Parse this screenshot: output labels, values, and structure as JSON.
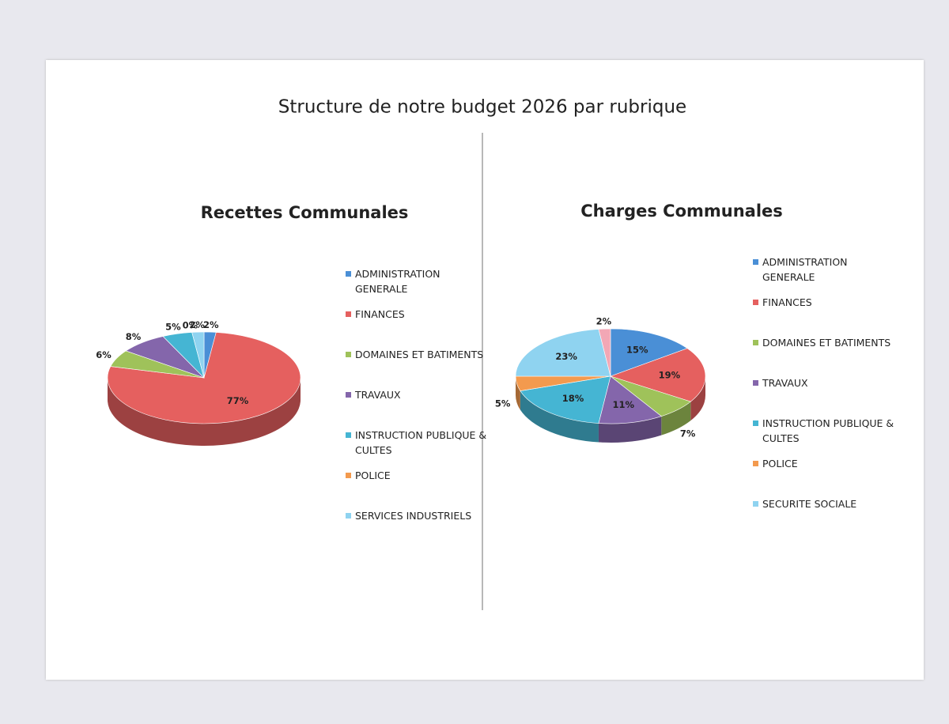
{
  "title": "Structure de notre budget 2026 par rubrique",
  "chart_data": [
    {
      "type": "pie",
      "title": "Recettes Communales",
      "categories": [
        "ADMINISTRATION GENERALE",
        "FINANCES",
        "DOMAINES ET BATIMENTS",
        "TRAVAUX",
        "INSTRUCTION PUBLIQUE & CULTES",
        "POLICE",
        "SERVICES INDUSTRIELS"
      ],
      "values": [
        2,
        77,
        6,
        8,
        5,
        0,
        2
      ],
      "value_labels": [
        "2%",
        "77%",
        "6%",
        "8%",
        "5%",
        "0%",
        "2%"
      ],
      "colors": [
        "#4a8fd6",
        "#e5605f",
        "#9fc25a",
        "#8466ab",
        "#45b5d3",
        "#f39a4e",
        "#8fd3f0"
      ]
    },
    {
      "type": "pie",
      "title": "Charges Communales",
      "categories": [
        "ADMINISTRATION GENERALE",
        "FINANCES",
        "DOMAINES ET BATIMENTS",
        "TRAVAUX",
        "INSTRUCTION PUBLIQUE & CULTES",
        "POLICE",
        "SECURITE SOCIALE",
        null
      ],
      "values": [
        15,
        19,
        7,
        11,
        18,
        5,
        23,
        2
      ],
      "value_labels": [
        "15%",
        "19%",
        "7%",
        "11%",
        "18%",
        "5%",
        "23%",
        "2%"
      ],
      "colors": [
        "#4a8fd6",
        "#e5605f",
        "#9fc25a",
        "#8466ab",
        "#45b5d3",
        "#f39a4e",
        "#8fd3f0",
        "#f2a7b5"
      ]
    }
  ]
}
